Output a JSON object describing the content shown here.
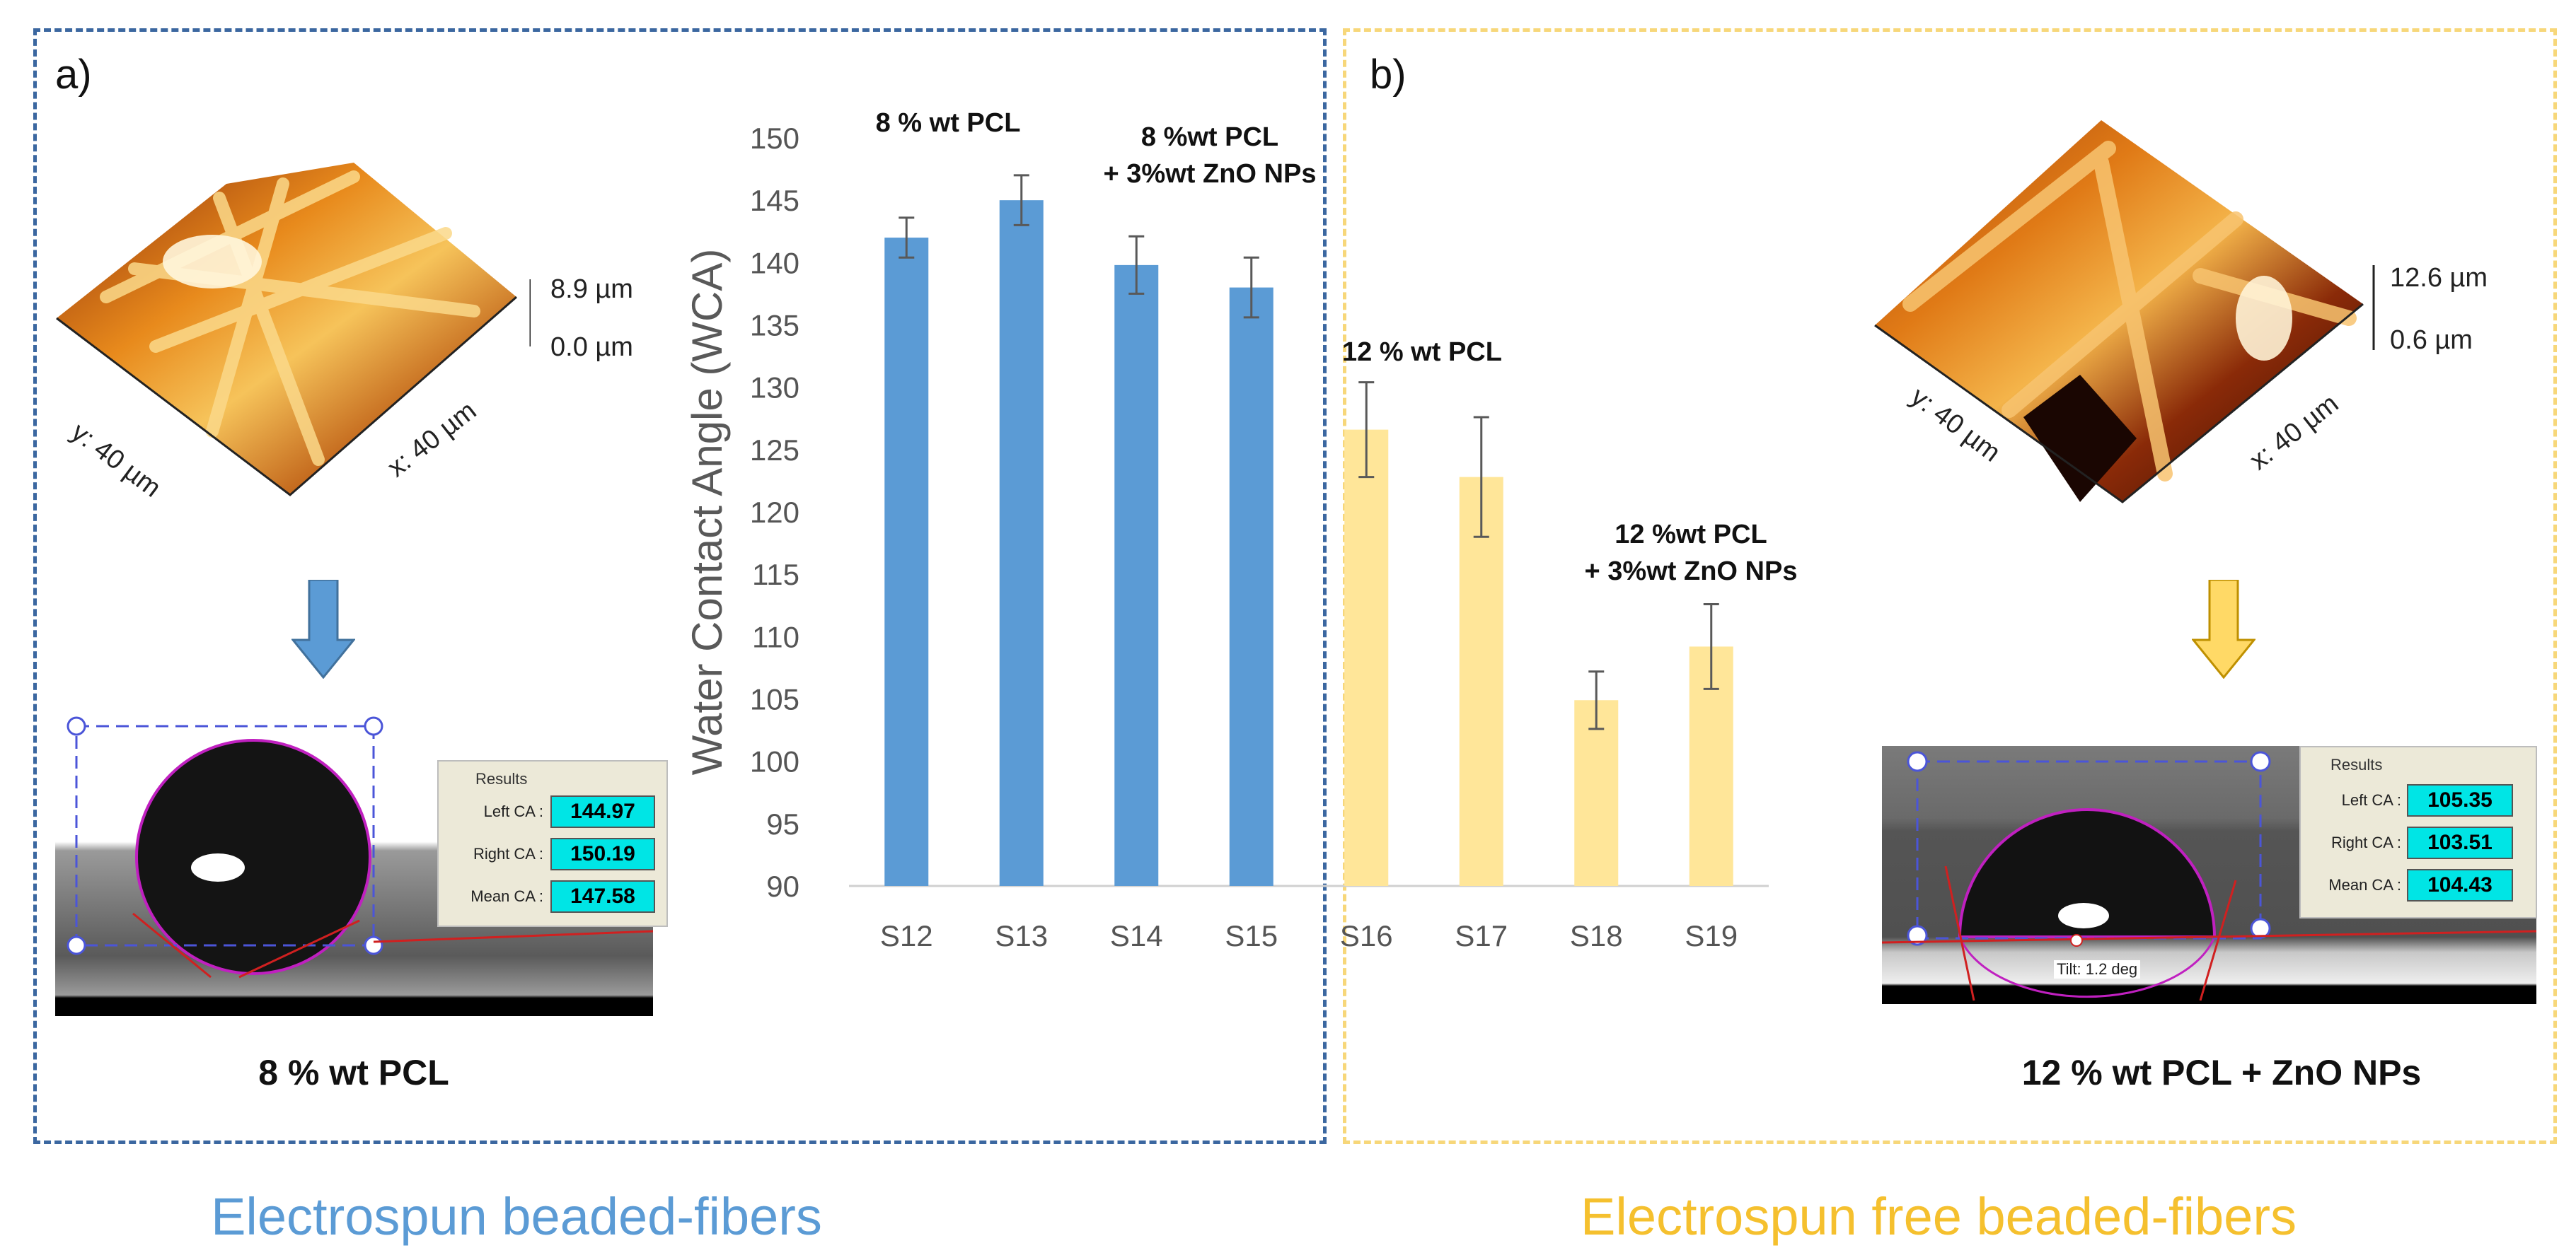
{
  "panel_a": {
    "label": "a)",
    "afm_height_max": "8.9 µm",
    "afm_height_min": "0.0 µm",
    "afm_y_axis": "y: 40 µm",
    "afm_x_axis": "x: 40 µm",
    "results": {
      "title": "Results",
      "left_label": "Left CA :",
      "left_value": "144.97",
      "right_label": "Right CA :",
      "right_value": "150.19",
      "mean_label": "Mean CA :",
      "mean_value": "147.58"
    },
    "caption": "8 % wt PCL",
    "footer": "Electrospun beaded-fibers"
  },
  "panel_b": {
    "label": "b)",
    "afm_height_max": "12.6 µm",
    "afm_height_min": "0.6 µm",
    "afm_y_axis": "y: 40 µm",
    "afm_x_axis": "x: 40 µm",
    "results": {
      "title": "Results",
      "left_label": "Left CA :",
      "left_value": "105.35",
      "right_label": "Right CA :",
      "right_value": "103.51",
      "mean_label": "Mean CA :",
      "mean_value": "104.43"
    },
    "tilt": "Tilt: 1.2 deg",
    "caption": "12 % wt PCL + ZnO NPs",
    "footer": "Electrospun free beaded-fibers"
  },
  "chart_data": {
    "type": "bar",
    "ylabel": "Water Contact Angle (WCA)",
    "ylim": [
      90,
      150
    ],
    "yticks": [
      90,
      95,
      100,
      105,
      110,
      115,
      120,
      125,
      130,
      135,
      140,
      145,
      150
    ],
    "categories": [
      "S12",
      "S13",
      "S14",
      "S15",
      "S16",
      "S17",
      "S18",
      "S19"
    ],
    "values": [
      142,
      145,
      139.8,
      138,
      126.6,
      122.8,
      104.9,
      109.2
    ],
    "errors": [
      1.6,
      2.0,
      2.3,
      2.4,
      3.8,
      4.8,
      2.3,
      3.4
    ],
    "group_colors": [
      "#5b9bd5",
      "#5b9bd5",
      "#5b9bd5",
      "#5b9bd5",
      "#ffe699",
      "#ffe699",
      "#ffe699",
      "#ffe699"
    ],
    "annotations": [
      {
        "lines": [
          "8 % wt PCL"
        ]
      },
      {
        "lines": [
          "8 %wt PCL",
          "+ 3%wt ZnO NPs"
        ]
      },
      {
        "lines": [
          "12 % wt PCL"
        ]
      },
      {
        "lines": [
          "12 %wt PCL",
          "+ 3%wt ZnO NPs"
        ]
      }
    ]
  },
  "colors": {
    "blue": "#5b9bd5",
    "yellow": "#ffe699",
    "panel_a_border": "#3b67a0",
    "panel_b_border": "#f7d77a",
    "footer_a": "#5b9bd5",
    "footer_b": "#f5c02e"
  }
}
